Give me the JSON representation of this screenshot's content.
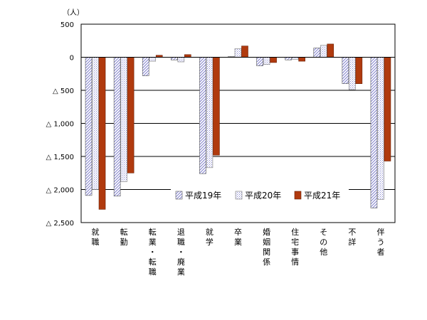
{
  "chart_data": {
    "type": "bar",
    "unit_label": "（人）",
    "ylim": [
      -2500,
      500
    ],
    "y_ticks": [
      500,
      0,
      -500,
      -1000,
      -1500,
      -2000,
      -2500
    ],
    "y_tick_labels": [
      "500",
      "0",
      "△ 500",
      "△ 1,000",
      "△ 1,500",
      "△ 2,000",
      "△ 2,500"
    ],
    "categories": [
      "就職",
      "転勤",
      "転業・転職",
      "退職・廃業",
      "就学",
      "卒業",
      "婚姻関係",
      "住宅事情",
      "その他",
      "不詳",
      "伴う者"
    ],
    "series": [
      {
        "name": "平成19年",
        "values": [
          -2090,
          -2100,
          -280,
          -40,
          -1760,
          10,
          -130,
          -40,
          140,
          -400,
          -2280
        ]
      },
      {
        "name": "平成20年",
        "values": [
          -2000,
          -1880,
          -60,
          -70,
          -1670,
          130,
          -110,
          -30,
          180,
          -490,
          -2150
        ]
      },
      {
        "name": "平成21年",
        "values": [
          -2300,
          -1750,
          30,
          40,
          -1480,
          170,
          -80,
          -60,
          200,
          -400,
          -1570
        ]
      }
    ],
    "legend_position": "bottom-right",
    "grid": true,
    "colors": {
      "s1": "#7f7fcc",
      "s2": "#9a9ad6",
      "s3": "#b03a0e"
    }
  }
}
